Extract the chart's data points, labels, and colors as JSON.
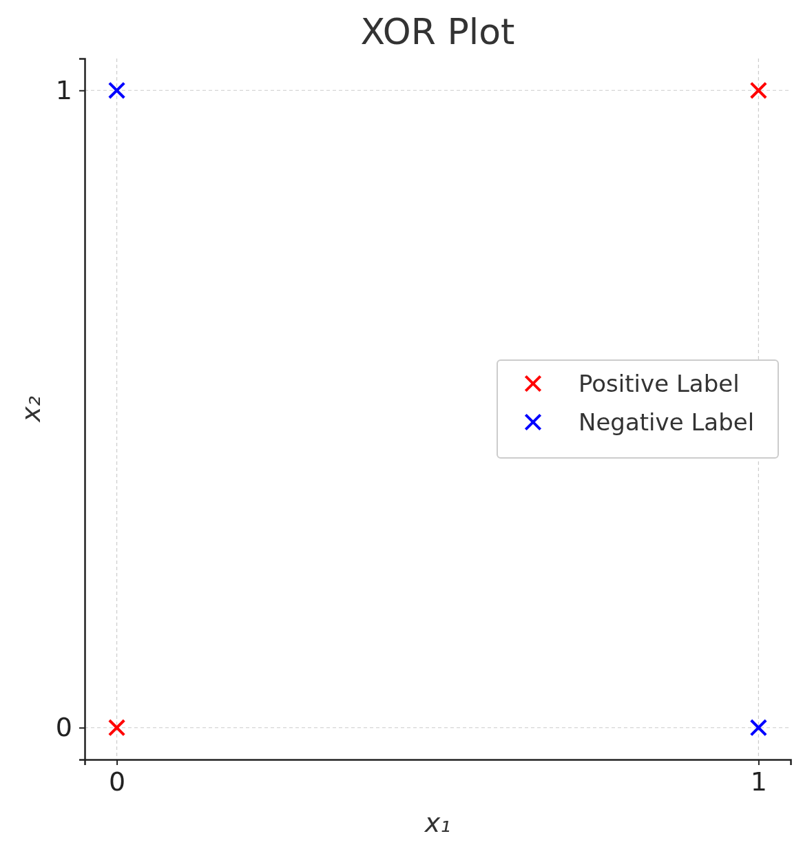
{
  "chart_data": {
    "type": "scatter",
    "title": "XOR Plot",
    "xlabel": "x₁",
    "ylabel": "x₂",
    "x": [
      0,
      1
    ],
    "xlim": [
      -0.05,
      1.05
    ],
    "ylim": [
      -0.05,
      1.05
    ],
    "xticks": [
      0,
      1
    ],
    "yticks": [
      0,
      1
    ],
    "grid": true,
    "legend": "right",
    "marker": "cross",
    "series": [
      {
        "name": "Positive Label",
        "color": "#ff0000",
        "values": [
          0,
          1
        ]
      },
      {
        "name": "Negative Label",
        "color": "#0000ff",
        "values": [
          1,
          0
        ]
      }
    ]
  }
}
